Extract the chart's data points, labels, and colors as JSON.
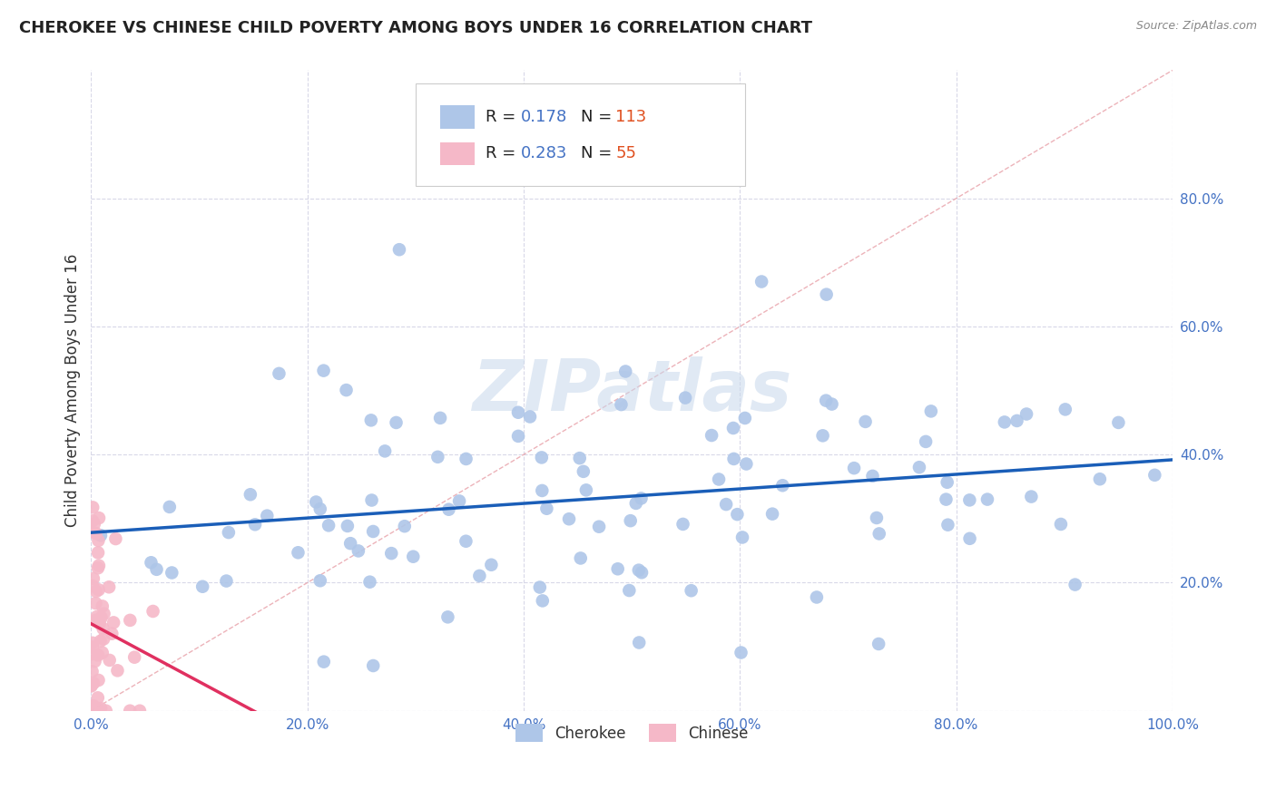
{
  "title": "CHEROKEE VS CHINESE CHILD POVERTY AMONG BOYS UNDER 16 CORRELATION CHART",
  "source": "Source: ZipAtlas.com",
  "ylabel": "Child Poverty Among Boys Under 16",
  "watermark": "ZIPatlas",
  "cherokee_R": 0.178,
  "cherokee_N": 113,
  "chinese_R": 0.283,
  "chinese_N": 55,
  "xlim": [
    0,
    1.0
  ],
  "ylim": [
    0,
    1.0
  ],
  "cherokee_color": "#aec6e8",
  "cherokee_line_color": "#1a5eb8",
  "chinese_color": "#f5b8c8",
  "chinese_line_color": "#e03060",
  "diagonal_color": "#e8a0a8",
  "background_color": "#ffffff",
  "grid_color": "#d8d8e8",
  "tick_color": "#4472c4",
  "legend_r_color": "#000000",
  "legend_val_color": "#4472c4",
  "legend_n_color": "#4472c4",
  "legend_nval_color": "#e05020"
}
